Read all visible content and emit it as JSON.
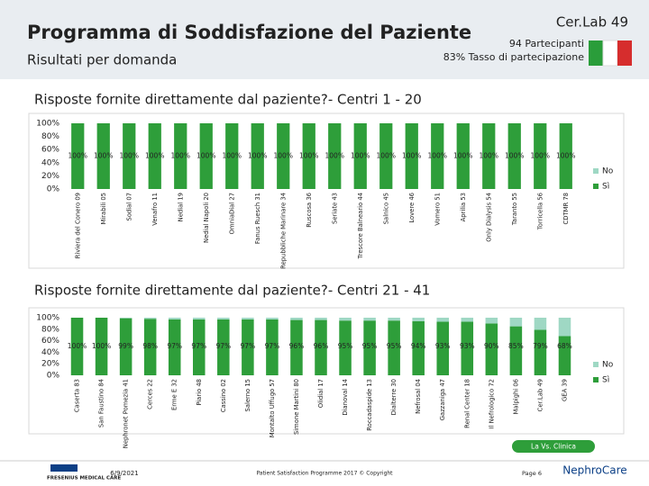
{
  "header": {
    "title": "Programma di Soddisfazione del Paziente",
    "subtitle": "Risultati per domanda",
    "clinic": "Cer.Lab 49",
    "participants": "94 Partecipanti",
    "rate": "83% Tasso di partecipazione"
  },
  "chart_data": [
    {
      "type": "bar",
      "stacked": true,
      "title": "Risposte fornite direttamente dal paziente?- Centri 1 - 20",
      "categories": [
        "Riviera del Conero 09",
        "Mirabili 05",
        "Sodial 07",
        "Venafro 11",
        "Nedial 19",
        "Nedial Napoli 20",
        "OmniaDial 27",
        "Fanus Ruesch 31",
        "Repubbliche Marinare 34",
        "Ruscosa 36",
        "Seriate 43",
        "Trescore Balneario 44",
        "Salnico 45",
        "Lovere 46",
        "Vomero 51",
        "Aprilia 53",
        "Only Dialysis 54",
        "Taranto 55",
        "Torricella 56",
        "CDTMR 78"
      ],
      "series": [
        {
          "name": "Sì",
          "color": "#2e9e3a",
          "values": [
            100,
            100,
            100,
            100,
            100,
            100,
            100,
            100,
            100,
            100,
            100,
            100,
            100,
            100,
            100,
            100,
            100,
            100,
            100,
            100
          ],
          "value_labels": [
            "100%",
            "100%",
            "100%",
            "100%",
            "100%",
            "100%",
            "100%",
            "100%",
            "100%",
            "100%",
            "100%",
            "100%",
            "100%",
            "100%",
            "100%",
            "100%",
            "100%",
            "100%",
            "100%",
            "100%"
          ]
        },
        {
          "name": "No",
          "color": "#9fd8c4",
          "values": [
            0,
            0,
            0,
            0,
            0,
            0,
            0,
            0,
            0,
            0,
            0,
            0,
            0,
            0,
            0,
            0,
            0,
            0,
            0,
            0
          ]
        }
      ],
      "ylim": [
        0,
        100
      ],
      "yticks": [
        {
          "value": 0,
          "label": "0%"
        },
        {
          "value": 20,
          "label": "20%"
        },
        {
          "value": 40,
          "label": "40%"
        },
        {
          "value": 60,
          "label": "60%"
        },
        {
          "value": 80,
          "label": "80%"
        },
        {
          "value": 100,
          "label": "100%"
        }
      ],
      "legend": "right"
    },
    {
      "type": "bar",
      "stacked": true,
      "title": "Risposte fornite direttamente dal paziente?- Centri 21 - 41",
      "categories": [
        "Caserta 83",
        "San Faustino 84",
        "Nephronet Pomezia 41",
        "Cerces 22",
        "Erme E 32",
        "Piario 48",
        "Cassino 02",
        "Salerno 15",
        "Montalto Uffugo 57",
        "Simone Martini 80",
        "Olidial 17",
        "Dianoval 14",
        "Roccadaspide 13",
        "Dialterre 30",
        "Nefrosal 04",
        "Gazzaniga 47",
        "Renal Center 18",
        "Il Nefrologico 72",
        "Malpighi 06",
        "Cer.Lab 49",
        "GEA 39"
      ],
      "series": [
        {
          "name": "Sì",
          "color": "#2e9e3a",
          "values": [
            100,
            100,
            99,
            98,
            97,
            97,
            97,
            97,
            97,
            96,
            96,
            95,
            95,
            95,
            94,
            93,
            93,
            90,
            85,
            79,
            68
          ],
          "value_labels": [
            "100%",
            "100%",
            "99%",
            "98%",
            "97%",
            "97%",
            "97%",
            "97%",
            "97%",
            "96%",
            "96%",
            "95%",
            "95%",
            "95%",
            "94%",
            "93%",
            "93%",
            "90%",
            "85%",
            "79%",
            "68%"
          ]
        },
        {
          "name": "No",
          "color": "#9fd8c4",
          "values": [
            0,
            0,
            1,
            2,
            3,
            3,
            3,
            3,
            3,
            4,
            4,
            5,
            5,
            5,
            6,
            7,
            7,
            10,
            15,
            21,
            32
          ]
        }
      ],
      "ylim": [
        0,
        100
      ],
      "yticks": [
        {
          "value": 0,
          "label": "0%"
        },
        {
          "value": 20,
          "label": "20%"
        },
        {
          "value": 40,
          "label": "40%"
        },
        {
          "value": 60,
          "label": "60%"
        },
        {
          "value": 80,
          "label": "80%"
        },
        {
          "value": 100,
          "label": "100%"
        }
      ],
      "legend": "right",
      "highlight": "La Vs. Clinica"
    }
  ],
  "footer": {
    "brand": "FRESENIUS MEDICAL CARE",
    "date": "6/9/2021",
    "copyright": "Patient Satisfaction Programme 2017 © Copyright",
    "page": "Page 6",
    "logo": "NephroCare"
  }
}
